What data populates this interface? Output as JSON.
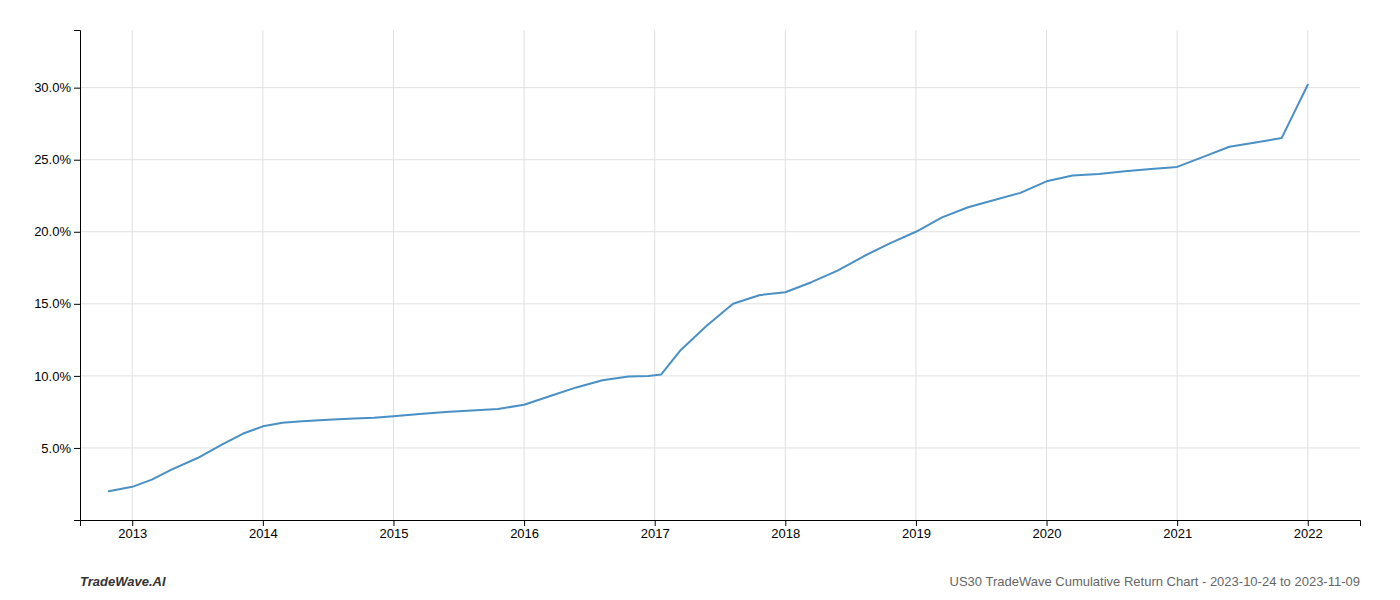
{
  "chart_data": {
    "type": "line",
    "x": [
      2012.82,
      2013.0,
      2013.15,
      2013.3,
      2013.5,
      2013.7,
      2013.85,
      2014.0,
      2014.15,
      2014.3,
      2014.5,
      2014.7,
      2014.85,
      2015.0,
      2015.2,
      2015.4,
      2015.6,
      2015.8,
      2016.0,
      2016.2,
      2016.4,
      2016.6,
      2016.8,
      2016.95,
      2017.0,
      2017.05,
      2017.2,
      2017.4,
      2017.6,
      2017.8,
      2018.0,
      2018.2,
      2018.4,
      2018.6,
      2018.8,
      2019.0,
      2019.2,
      2019.4,
      2019.6,
      2019.8,
      2020.0,
      2020.2,
      2020.4,
      2020.6,
      2020.8,
      2021.0,
      2021.2,
      2021.4,
      2021.6,
      2021.8,
      2022.0
    ],
    "values": [
      2.0,
      2.3,
      2.8,
      3.5,
      4.3,
      5.3,
      6.0,
      6.5,
      6.75,
      6.85,
      6.95,
      7.05,
      7.1,
      7.2,
      7.35,
      7.5,
      7.6,
      7.7,
      8.0,
      8.6,
      9.2,
      9.7,
      9.95,
      10.0,
      10.05,
      10.1,
      11.8,
      13.5,
      15.0,
      15.6,
      15.8,
      16.5,
      17.3,
      18.3,
      19.2,
      20.0,
      21.0,
      21.7,
      22.2,
      22.7,
      23.5,
      23.9,
      24.0,
      24.2,
      24.35,
      24.5,
      25.2,
      25.9,
      26.2,
      26.5,
      30.2
    ],
    "color": "#4a90c4",
    "xlim": [
      2012.6,
      2022.4
    ],
    "xticks": [
      2013,
      2014,
      2015,
      2016,
      2017,
      2018,
      2019,
      2020,
      2021,
      2022
    ],
    "ylim": [
      0.0,
      34.0
    ],
    "yticks": [
      {
        "value": 5.0,
        "label": "5.0%"
      },
      {
        "value": 10.0,
        "label": "10.0%"
      },
      {
        "value": 15.0,
        "label": "15.0%"
      },
      {
        "value": 20.0,
        "label": "20.0%"
      },
      {
        "value": 25.0,
        "label": "25.0%"
      },
      {
        "value": 30.0,
        "label": "30.0%"
      }
    ],
    "grid": true,
    "annotations": [
      "TradeWave.AI",
      "US30 TradeWave Cumulative Return Chart - 2023-10-24 to 2023-11-09"
    ]
  }
}
